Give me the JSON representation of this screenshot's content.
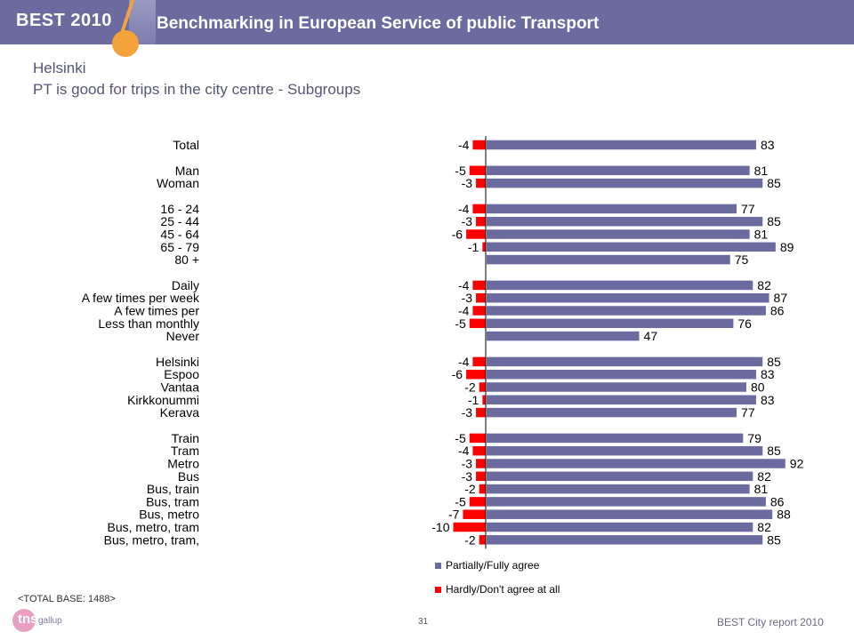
{
  "header": {
    "brand": "BEST 2010",
    "title": "Benchmarking in European Service of public Transport"
  },
  "city": "Helsinki",
  "subtitle": "PT is good for trips in the city centre - Subgroups",
  "total_base": "<TOTAL BASE: 1488>",
  "page_number": "31",
  "footer": "BEST City report 2010",
  "logo": {
    "tns": "tns",
    "gallup": "gallup"
  },
  "colors": {
    "agree": "#6b6ba0",
    "disagree": "#ff0000",
    "banner": "#6b6ba0",
    "accent": "#f4a23a"
  },
  "chart_data": {
    "type": "bar",
    "orientation": "horizontal",
    "categories": [
      "Total",
      "Man",
      "Woman",
      "16 - 24",
      "25 - 44",
      "45 - 64",
      "65 - 79",
      "80 +",
      "Daily",
      "A few times per week",
      "A few times per",
      "Less than monthly",
      "Never",
      "Helsinki",
      "Espoo",
      "Vantaa",
      "Kirkkonummi",
      "Kerava",
      "Train",
      "Tram",
      "Metro",
      "Bus",
      "Bus, train",
      "Bus, tram",
      "Bus, metro",
      "Bus, metro, tram",
      "Bus, metro, tram,"
    ],
    "groups": [
      [
        0
      ],
      [
        1,
        2
      ],
      [
        3,
        4,
        5,
        6,
        7
      ],
      [
        8,
        9,
        10,
        11,
        12
      ],
      [
        13,
        14,
        15,
        16,
        17
      ],
      [
        18,
        19,
        20,
        21,
        22,
        23,
        24,
        25,
        26
      ]
    ],
    "series": [
      {
        "name": "Partially/Fully agree",
        "values": [
          83,
          81,
          85,
          77,
          85,
          81,
          89,
          75,
          82,
          87,
          86,
          76,
          47,
          85,
          83,
          80,
          83,
          77,
          79,
          85,
          92,
          82,
          81,
          86,
          88,
          82,
          85
        ]
      },
      {
        "name": "Hardly/Don't agree at all",
        "values": [
          -4,
          -5,
          -3,
          -4,
          -3,
          -6,
          -1,
          null,
          -4,
          -3,
          -4,
          -5,
          null,
          -4,
          -6,
          -2,
          -1,
          -3,
          -5,
          -4,
          -3,
          -3,
          -2,
          -5,
          -7,
          -10,
          -2
        ]
      }
    ],
    "legend_position": "bottom"
  }
}
